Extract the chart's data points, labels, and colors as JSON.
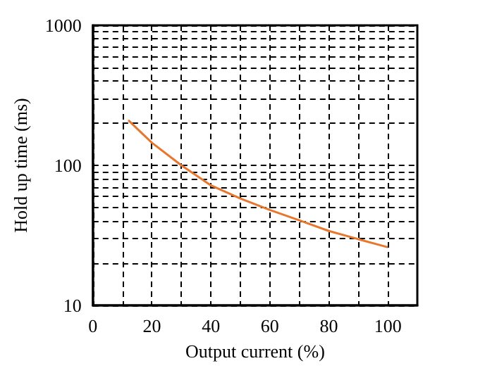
{
  "chart_data": {
    "type": "line",
    "xlabel": "Output current (%)",
    "ylabel": "Hold up time (ms)",
    "x": [
      12,
      20,
      30,
      40,
      50,
      60,
      70,
      80,
      90,
      100
    ],
    "series": [
      {
        "color": "#e8772e",
        "values": [
          210,
          145,
          100,
          72,
          58,
          48,
          40.5,
          34,
          29.7,
          26
        ]
      }
    ],
    "xlim": [
      0,
      110
    ],
    "ylim": [
      10,
      1000
    ],
    "log": "y",
    "xticks": [
      0,
      {
        "value": 10,
        "label": null
      },
      20,
      {
        "value": 30,
        "label": null
      },
      40,
      {
        "value": 50,
        "label": null
      },
      60,
      {
        "value": 70,
        "label": null
      },
      80,
      {
        "value": 90,
        "label": null
      },
      100
    ],
    "yticks": [
      10,
      {
        "value": 20,
        "label": null
      },
      {
        "value": 30,
        "label": null
      },
      {
        "value": 40,
        "label": null
      },
      {
        "value": 50,
        "label": null
      },
      {
        "value": 60,
        "label": null
      },
      {
        "value": 70,
        "label": null
      },
      {
        "value": 80,
        "label": null
      },
      {
        "value": 90,
        "label": null
      },
      100,
      {
        "value": 200,
        "label": null
      },
      {
        "value": 300,
        "label": null
      },
      {
        "value": 400,
        "label": null
      },
      {
        "value": 500,
        "label": null
      },
      {
        "value": 600,
        "label": null
      },
      {
        "value": 700,
        "label": null
      },
      {
        "value": 800,
        "label": null
      },
      {
        "value": 900,
        "label": null
      },
      1000
    ],
    "grid": true,
    "marker": "none",
    "line_style": "solid"
  }
}
